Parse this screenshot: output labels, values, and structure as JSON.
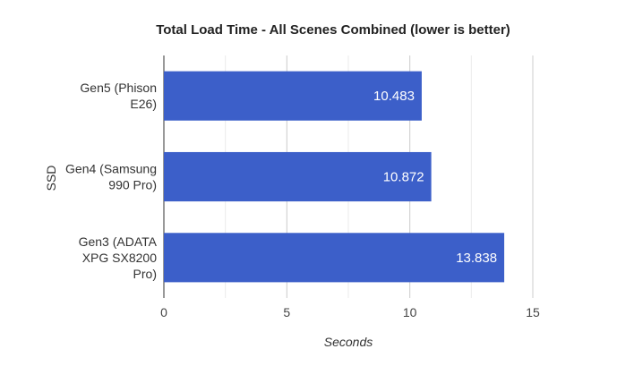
{
  "chart_data": {
    "type": "bar",
    "orientation": "horizontal",
    "title": "Total Load Time - All Scenes Combined (lower is better)",
    "xlabel": "Seconds",
    "ylabel": "SSD",
    "categories": [
      [
        "Gen5 (Phison",
        "E26)"
      ],
      [
        "Gen4 (Samsung",
        "990 Pro)"
      ],
      [
        "Gen3 (ADATA",
        "XPG SX8200",
        "Pro)"
      ]
    ],
    "values": [
      10.483,
      10.872,
      13.838
    ],
    "value_labels": [
      "10.483",
      "10.872",
      "13.838"
    ],
    "xlim": [
      0,
      15
    ],
    "xticks": [
      0,
      5,
      10,
      15
    ],
    "grid": true,
    "bar_color": "#3c5fc9"
  }
}
